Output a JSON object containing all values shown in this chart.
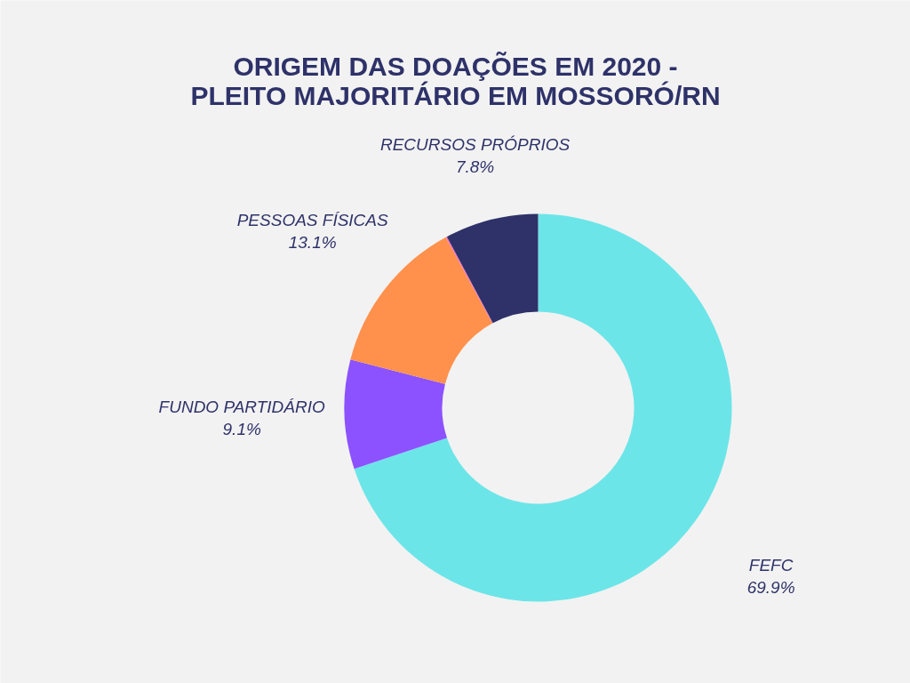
{
  "chart_data": {
    "type": "donut",
    "title": "ORIGEM DAS DOAÇÕES EM 2020 -\nPLEITO MAJORITÁRIO EM MOSSORÓ/RN",
    "categories": [
      "FEFC",
      "FUNDO PARTIDÁRIO",
      "PESSOAS FÍSICAS",
      null,
      "RECURSOS PRÓPRIOS"
    ],
    "values": [
      69.9,
      9.1,
      13.1,
      0.1,
      7.8
    ],
    "colors": [
      "#6ce5e8",
      "#8c52ff",
      "#ff914d",
      "#ff66c4",
      "#2e3269"
    ],
    "value_labels": [
      "69.9%",
      "9.1%",
      "13.1%",
      null,
      "7.8%"
    ]
  }
}
